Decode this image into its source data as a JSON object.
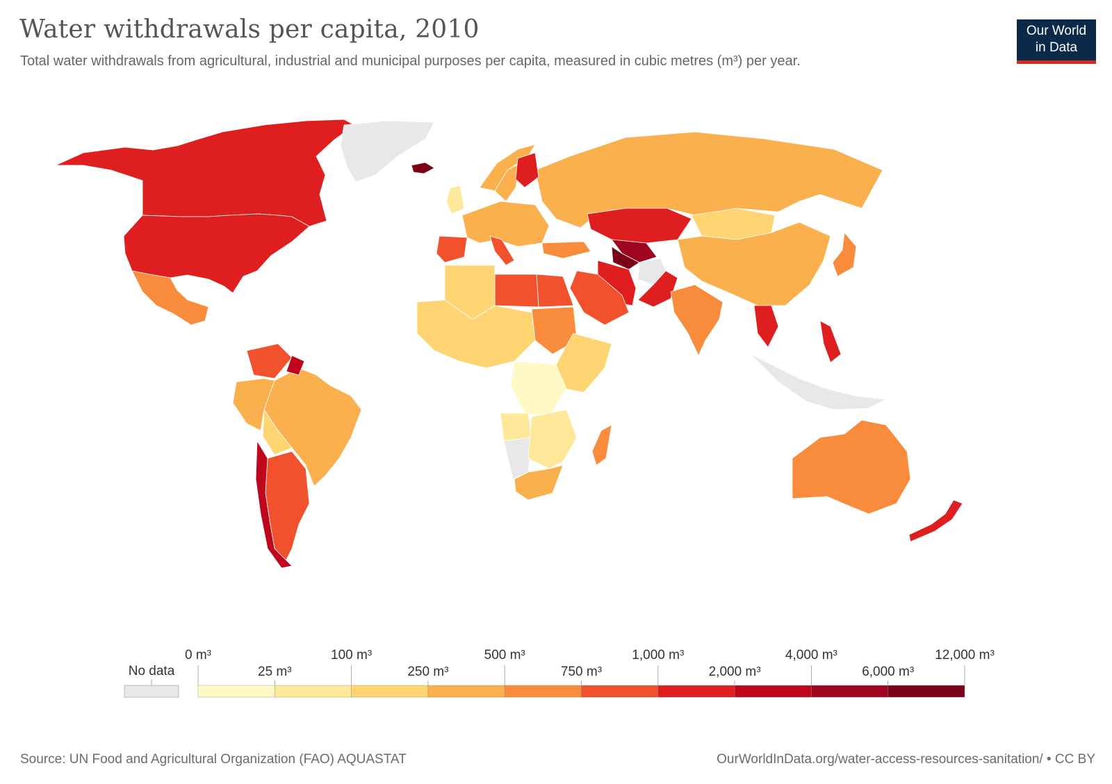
{
  "header": {
    "title": "Water withdrawals per capita, 2010",
    "subtitle": "Total water withdrawals from agricultural, industrial and municipal purposes per capita, measured in cubic metres (m³) per year.",
    "logo_line1": "Our World",
    "logo_line2": "in Data"
  },
  "colors": {
    "no_data": "#e8e8e8",
    "bins": [
      "#fff9c6",
      "#fee99b",
      "#fed572",
      "#fbb04e",
      "#f88b3c",
      "#f1522d",
      "#df1e1f",
      "#c0061d",
      "#9f0520",
      "#7a0317"
    ]
  },
  "legend": {
    "no_data_label": "No data",
    "tick_labels_upper": [
      "0 m³",
      "100 m³",
      "500 m³",
      "1,000 m³",
      "4,000 m³",
      "12,000 m³"
    ],
    "tick_labels_lower": [
      "25 m³",
      "250 m³",
      "750 m³",
      "2,000 m³",
      "6,000 m³"
    ]
  },
  "regions": [
    {
      "name": "Canada",
      "bin": 6
    },
    {
      "name": "United States",
      "bin": 6
    },
    {
      "name": "Mexico",
      "bin": 4
    },
    {
      "name": "Greenland",
      "bin": -1
    },
    {
      "name": "Iceland",
      "bin": 9
    },
    {
      "name": "Brazil",
      "bin": 3
    },
    {
      "name": "Argentina",
      "bin": 5
    },
    {
      "name": "Chile",
      "bin": 7
    },
    {
      "name": "Venezuela",
      "bin": 5
    },
    {
      "name": "Guyana",
      "bin": 7
    },
    {
      "name": "Peru",
      "bin": 3
    },
    {
      "name": "Bolivia",
      "bin": 2
    },
    {
      "name": "Russia",
      "bin": 3
    },
    {
      "name": "China",
      "bin": 3
    },
    {
      "name": "Mongolia",
      "bin": 2
    },
    {
      "name": "Kazakhstan",
      "bin": 6
    },
    {
      "name": "Uzbekistan",
      "bin": 8
    },
    {
      "name": "Turkmenistan",
      "bin": 9
    },
    {
      "name": "Iran",
      "bin": 6
    },
    {
      "name": "Afghanistan",
      "bin": -1
    },
    {
      "name": "Pakistan",
      "bin": 6
    },
    {
      "name": "India",
      "bin": 4
    },
    {
      "name": "Saudi Arabia",
      "bin": 5
    },
    {
      "name": "Egypt",
      "bin": 5
    },
    {
      "name": "Libya",
      "bin": 5
    },
    {
      "name": "Algeria",
      "bin": 2
    },
    {
      "name": "Sudan",
      "bin": 4
    },
    {
      "name": "DR Congo",
      "bin": 0
    },
    {
      "name": "Angola",
      "bin": 1
    },
    {
      "name": "Namibia",
      "bin": -1
    },
    {
      "name": "South Africa",
      "bin": 3
    },
    {
      "name": "Madagascar",
      "bin": 4
    },
    {
      "name": "Australia",
      "bin": 4
    },
    {
      "name": "New Zealand",
      "bin": 6
    },
    {
      "name": "Indonesia",
      "bin": -1
    },
    {
      "name": "Philippines",
      "bin": 6
    },
    {
      "name": "Thailand",
      "bin": 6
    },
    {
      "name": "Japan",
      "bin": 4
    },
    {
      "name": "Spain",
      "bin": 5
    },
    {
      "name": "Italy",
      "bin": 5
    },
    {
      "name": "Finland",
      "bin": 6
    },
    {
      "name": "Sweden",
      "bin": 3
    },
    {
      "name": "Norway",
      "bin": 3
    },
    {
      "name": "United Kingdom",
      "bin": 1
    },
    {
      "name": "Turkey",
      "bin": 4
    }
  ],
  "footer": {
    "source": "Source: UN Food and Agricultural Organization (FAO) AQUASTAT",
    "url": "OurWorldInData.org/water-access-resources-sanitation/ • CC BY"
  }
}
